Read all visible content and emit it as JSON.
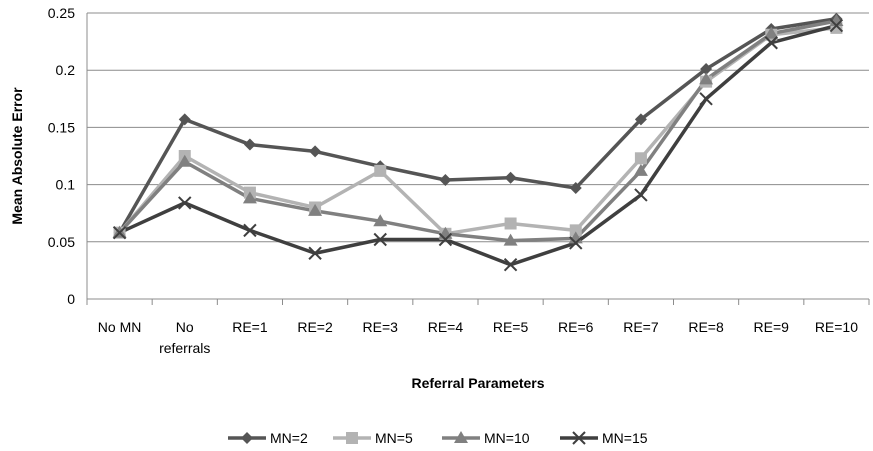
{
  "chart_data": {
    "type": "line",
    "xlabel": "Referral Parameters",
    "ylabel": "Mean Absolute Error",
    "ylim": [
      0,
      0.25
    ],
    "yticks": [
      "0",
      "0.05",
      "0.1",
      "0.15",
      "0.2",
      "0.25"
    ],
    "grid": true,
    "legend_position": "bottom",
    "categories": [
      [
        "No MN"
      ],
      [
        "No",
        "referrals"
      ],
      [
        "RE=1"
      ],
      [
        "RE=2"
      ],
      [
        "RE=3"
      ],
      [
        "RE=4"
      ],
      [
        "RE=5"
      ],
      [
        "RE=6"
      ],
      [
        "RE=7"
      ],
      [
        "RE=8"
      ],
      [
        "RE=9"
      ],
      [
        "RE=10"
      ]
    ],
    "series": [
      {
        "name": "MN=2",
        "color": "#555555",
        "marker": "diamond",
        "values": [
          0.058,
          0.157,
          0.135,
          0.129,
          0.116,
          0.104,
          0.106,
          0.097,
          0.157,
          0.201,
          0.236,
          0.245
        ]
      },
      {
        "name": "MN=5",
        "color": "#b3b3b3",
        "marker": "square",
        "values": [
          0.058,
          0.125,
          0.093,
          0.08,
          0.112,
          0.057,
          0.066,
          0.06,
          0.123,
          0.19,
          0.231,
          0.237
        ]
      },
      {
        "name": "MN=10",
        "color": "#808080",
        "marker": "triangle",
        "values": [
          0.058,
          0.12,
          0.088,
          0.077,
          0.068,
          0.057,
          0.051,
          0.053,
          0.112,
          0.192,
          0.232,
          0.243
        ]
      },
      {
        "name": "MN=15",
        "color": "#3f3f3f",
        "marker": "x",
        "values": [
          0.058,
          0.084,
          0.06,
          0.04,
          0.052,
          0.052,
          0.03,
          0.049,
          0.091,
          0.175,
          0.224,
          0.239
        ]
      }
    ]
  }
}
